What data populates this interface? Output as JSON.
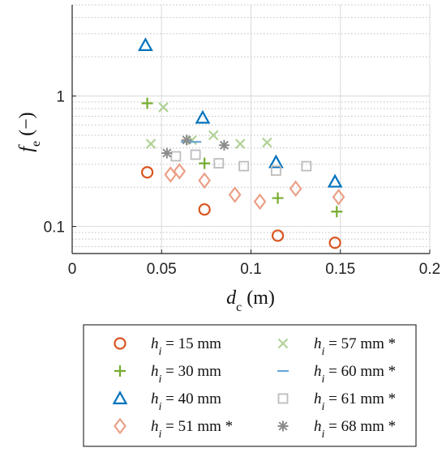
{
  "chart_data": {
    "type": "scatter",
    "x_scale": "linear",
    "y_scale": "log",
    "xlim": [
      0,
      0.2
    ],
    "ylim": [
      0.062,
      5.0
    ],
    "xticks": [
      0,
      0.05,
      0.1,
      0.15,
      0.2
    ],
    "xtick_labels": [
      "0",
      "0.05",
      "0.1",
      "0.15",
      "0.2"
    ],
    "yticks": [
      0.1,
      1
    ],
    "ytick_labels": [
      "0.1",
      "1"
    ],
    "grid": true,
    "xlabel": {
      "main": "d",
      "sub": "c",
      "unit": " (m)"
    },
    "ylabel": {
      "main": "f",
      "sub": "e",
      "unit": " (−)"
    },
    "legend_position": "bottom",
    "series": [
      {
        "name": {
          "var": "h",
          "sub": "i",
          "rest": " = 15 mm"
        },
        "marker": "circle",
        "color": "#d9541e",
        "points": [
          [
            0.042,
            0.26
          ],
          [
            0.074,
            0.135
          ],
          [
            0.115,
            0.085
          ],
          [
            0.147,
            0.075
          ]
        ]
      },
      {
        "name": {
          "var": "h",
          "sub": "i",
          "rest": " = 30 mm"
        },
        "marker": "plus",
        "color": "#77ac30",
        "points": [
          [
            0.042,
            0.88
          ],
          [
            0.074,
            0.305
          ],
          [
            0.115,
            0.165
          ],
          [
            0.148,
            0.13
          ]
        ]
      },
      {
        "name": {
          "var": "h",
          "sub": "i",
          "rest": " = 40 mm"
        },
        "marker": "triangle",
        "color": "#0072bd",
        "points": [
          [
            0.041,
            2.45
          ],
          [
            0.073,
            0.68
          ],
          [
            0.114,
            0.31
          ],
          [
            0.147,
            0.22
          ]
        ]
      },
      {
        "name": {
          "var": "h",
          "sub": "i",
          "rest": " = 51 mm *"
        },
        "marker": "diamond",
        "color": "#eba087",
        "points": [
          [
            0.055,
            0.25
          ],
          [
            0.06,
            0.265
          ],
          [
            0.074,
            0.225
          ],
          [
            0.091,
            0.175
          ],
          [
            0.105,
            0.155
          ],
          [
            0.125,
            0.195
          ],
          [
            0.149,
            0.168
          ]
        ]
      },
      {
        "name": {
          "var": "h",
          "sub": "i",
          "rest": " = 57 mm *"
        },
        "marker": "x",
        "color": "#b1d296",
        "points": [
          [
            0.044,
            0.43
          ],
          [
            0.051,
            0.82
          ],
          [
            0.067,
            0.46
          ],
          [
            0.079,
            0.5
          ],
          [
            0.094,
            0.43
          ],
          [
            0.109,
            0.44
          ]
        ]
      },
      {
        "name": {
          "var": "h",
          "sub": "i",
          "rest": " = 60 mm *"
        },
        "marker": "hline",
        "color": "#6aa6d8",
        "points": [
          [
            0.064,
            0.445
          ],
          [
            0.069,
            0.445
          ]
        ]
      },
      {
        "name": {
          "var": "h",
          "sub": "i",
          "rest": " = 61 mm *"
        },
        "marker": "square",
        "color": "#bdbdbd",
        "points": [
          [
            0.058,
            0.345
          ],
          [
            0.069,
            0.355
          ],
          [
            0.082,
            0.305
          ],
          [
            0.096,
            0.29
          ],
          [
            0.114,
            0.268
          ],
          [
            0.131,
            0.29
          ]
        ]
      },
      {
        "name": {
          "var": "h",
          "sub": "i",
          "rest": " = 68 mm *"
        },
        "marker": "asterisk",
        "color": "#8c8c8c",
        "points": [
          [
            0.053,
            0.365
          ],
          [
            0.064,
            0.46
          ],
          [
            0.085,
            0.42
          ]
        ]
      }
    ]
  }
}
